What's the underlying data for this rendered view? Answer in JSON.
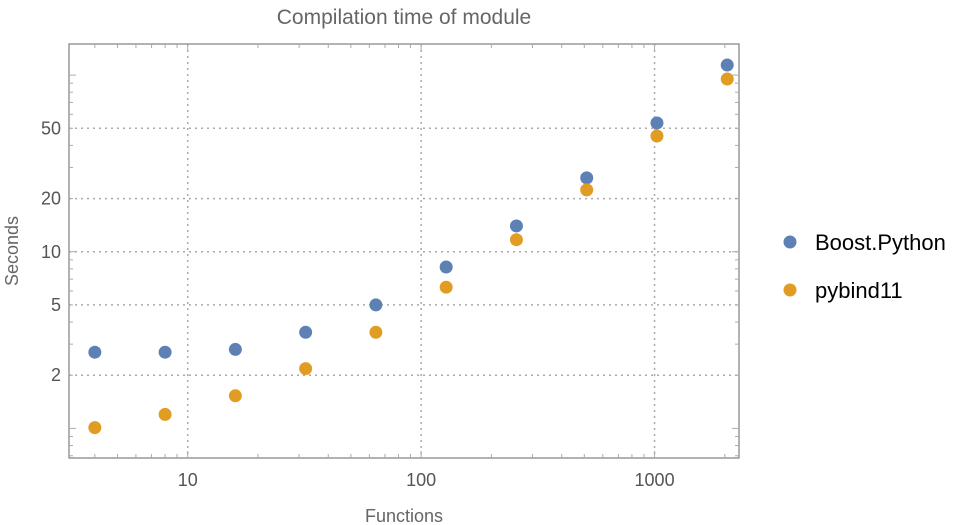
{
  "chart_data": {
    "type": "scatter",
    "title": "Compilation time of module",
    "xlabel": "Functions",
    "ylabel": "Seconds",
    "x_scale": "log",
    "y_scale": "log",
    "xlim": [
      3.1,
      2300
    ],
    "ylim": [
      0.68,
      150
    ],
    "x_ticks": [
      {
        "value": 10,
        "label": "10"
      },
      {
        "value": 100,
        "label": "100"
      },
      {
        "value": 1000,
        "label": "1000"
      }
    ],
    "y_ticks": [
      {
        "value": 2,
        "label": "2"
      },
      {
        "value": 5,
        "label": "5"
      },
      {
        "value": 10,
        "label": "10"
      },
      {
        "value": 20,
        "label": "20"
      },
      {
        "value": 50,
        "label": "50"
      }
    ],
    "grid": true,
    "legend_position": "right",
    "x": [
      4,
      8,
      16,
      32,
      64,
      128,
      256,
      512,
      1024,
      2048
    ],
    "series": [
      {
        "name": "Boost.Python",
        "color": "#5e81b5",
        "values": [
          2.7,
          2.7,
          2.8,
          3.5,
          5.0,
          8.2,
          14.0,
          26.2,
          53.6,
          114
        ]
      },
      {
        "name": "pybind11",
        "color": "#e19c24",
        "values": [
          1.01,
          1.2,
          1.53,
          2.18,
          3.5,
          6.3,
          11.7,
          22.4,
          45.2,
          95
        ]
      }
    ]
  }
}
